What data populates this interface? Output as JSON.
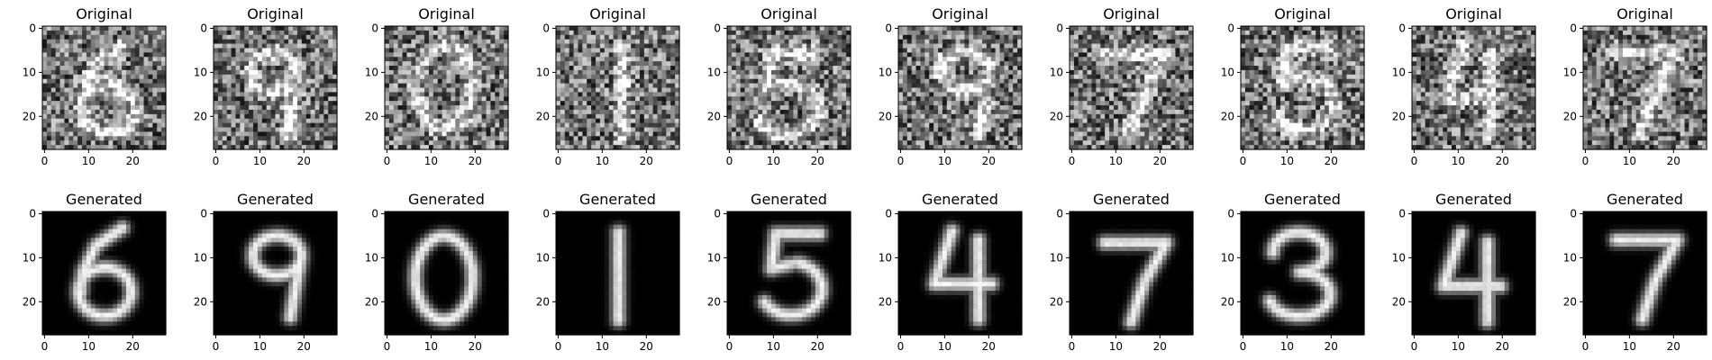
{
  "chart_data": {
    "type": "image-grid",
    "rows": [
      {
        "name": "original",
        "title": "Original",
        "noisy": true
      },
      {
        "name": "generated",
        "title": "Generated",
        "noisy": false
      }
    ],
    "digits": [
      6,
      9,
      0,
      1,
      5,
      9,
      7,
      5,
      4,
      7
    ],
    "generated_digits": [
      6,
      9,
      0,
      1,
      5,
      4,
      7,
      3,
      4,
      7
    ],
    "image_size": [
      28,
      28
    ],
    "xlim": [
      -0.5,
      27.5
    ],
    "ylim": [
      27.5,
      -0.5
    ],
    "xticks": [
      0,
      10,
      20
    ],
    "yticks": [
      0,
      10,
      20
    ],
    "colormap": "gray"
  }
}
